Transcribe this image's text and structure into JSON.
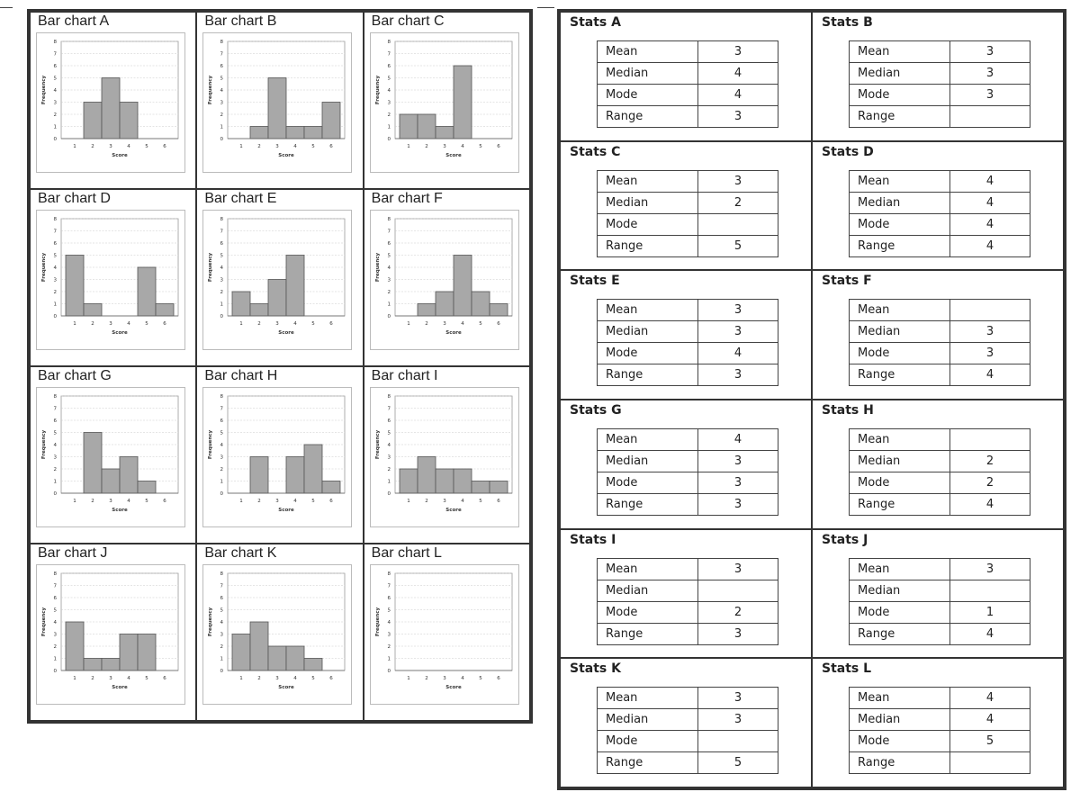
{
  "page": {
    "bg": "#ffffff",
    "bar_color": "#a8a8a8",
    "border_color": "#333333"
  },
  "chart_common": {
    "xlabel": "Score",
    "ylabel": "Frequency",
    "yticks": [
      0,
      1,
      2,
      3,
      4,
      5,
      6,
      7,
      8
    ],
    "xticks": [
      1,
      2,
      3,
      4,
      5,
      6
    ],
    "ylim": [
      0,
      8
    ]
  },
  "chart_data": [
    {
      "type": "bar",
      "title": "Bar chart A",
      "categories": [
        1,
        2,
        3,
        4,
        5,
        6
      ],
      "values": [
        0,
        3,
        5,
        3,
        0,
        0
      ],
      "xlabel": "Score",
      "ylabel": "Frequency",
      "ylim": [
        0,
        8
      ]
    },
    {
      "type": "bar",
      "title": "Bar chart B",
      "categories": [
        1,
        2,
        3,
        4,
        5,
        6
      ],
      "values": [
        0,
        1,
        5,
        1,
        1,
        3
      ],
      "xlabel": "Score",
      "ylabel": "Frequency",
      "ylim": [
        0,
        8
      ]
    },
    {
      "type": "bar",
      "title": "Bar chart C",
      "categories": [
        1,
        2,
        3,
        4,
        5,
        6
      ],
      "values": [
        2,
        2,
        1,
        6,
        0,
        0
      ],
      "xlabel": "Score",
      "ylabel": "Frequency",
      "ylim": [
        0,
        8
      ]
    },
    {
      "type": "bar",
      "title": "Bar chart D",
      "categories": [
        1,
        2,
        3,
        4,
        5,
        6
      ],
      "values": [
        5,
        1,
        0,
        0,
        4,
        1
      ],
      "xlabel": "Score",
      "ylabel": "Frequency",
      "ylim": [
        0,
        8
      ]
    },
    {
      "type": "bar",
      "title": "Bar chart E",
      "categories": [
        1,
        2,
        3,
        4,
        5,
        6
      ],
      "values": [
        2,
        1,
        3,
        5,
        0,
        0
      ],
      "xlabel": "Score",
      "ylabel": "Frequency",
      "ylim": [
        0,
        8
      ]
    },
    {
      "type": "bar",
      "title": "Bar chart F",
      "categories": [
        1,
        2,
        3,
        4,
        5,
        6
      ],
      "values": [
        0,
        1,
        2,
        5,
        2,
        1
      ],
      "xlabel": "Score",
      "ylabel": "Frequency",
      "ylim": [
        0,
        8
      ]
    },
    {
      "type": "bar",
      "title": "Bar chart G",
      "categories": [
        1,
        2,
        3,
        4,
        5,
        6
      ],
      "values": [
        0,
        5,
        2,
        3,
        1,
        0
      ],
      "xlabel": "Score",
      "ylabel": "Frequency",
      "ylim": [
        0,
        8
      ]
    },
    {
      "type": "bar",
      "title": "Bar chart H",
      "categories": [
        1,
        2,
        3,
        4,
        5,
        6
      ],
      "values": [
        0,
        3,
        0,
        3,
        4,
        1
      ],
      "xlabel": "Score",
      "ylabel": "Frequency",
      "ylim": [
        0,
        8
      ]
    },
    {
      "type": "bar",
      "title": "Bar chart I",
      "categories": [
        1,
        2,
        3,
        4,
        5,
        6
      ],
      "values": [
        2,
        3,
        2,
        2,
        1,
        1
      ],
      "xlabel": "Score",
      "ylabel": "Frequency",
      "ylim": [
        0,
        8
      ]
    },
    {
      "type": "bar",
      "title": "Bar chart J",
      "categories": [
        1,
        2,
        3,
        4,
        5,
        6
      ],
      "values": [
        4,
        1,
        1,
        3,
        3,
        0
      ],
      "xlabel": "Score",
      "ylabel": "Frequency",
      "ylim": [
        0,
        8
      ]
    },
    {
      "type": "bar",
      "title": "Bar chart K",
      "categories": [
        1,
        2,
        3,
        4,
        5,
        6
      ],
      "values": [
        3,
        4,
        2,
        2,
        1,
        0
      ],
      "xlabel": "Score",
      "ylabel": "Frequency",
      "ylim": [
        0,
        8
      ]
    },
    {
      "type": "bar",
      "title": "Bar chart L",
      "categories": [
        1,
        2,
        3,
        4,
        5,
        6
      ],
      "values": [
        0,
        0,
        0,
        0,
        0,
        0
      ],
      "xlabel": "Score",
      "ylabel": "Frequency",
      "ylim": [
        0,
        8
      ]
    }
  ],
  "stats": [
    {
      "title": "Stats A",
      "rows": [
        {
          "label": "Mean",
          "value": "3"
        },
        {
          "label": "Median",
          "value": "4"
        },
        {
          "label": "Mode",
          "value": "4"
        },
        {
          "label": "Range",
          "value": "3"
        }
      ]
    },
    {
      "title": "Stats B",
      "rows": [
        {
          "label": "Mean",
          "value": "3"
        },
        {
          "label": "Median",
          "value": "3"
        },
        {
          "label": "Mode",
          "value": "3"
        },
        {
          "label": "Range",
          "value": ""
        }
      ]
    },
    {
      "title": "Stats C",
      "rows": [
        {
          "label": "Mean",
          "value": "3"
        },
        {
          "label": "Median",
          "value": "2"
        },
        {
          "label": "Mode",
          "value": ""
        },
        {
          "label": "Range",
          "value": "5"
        }
      ]
    },
    {
      "title": "Stats D",
      "rows": [
        {
          "label": "Mean",
          "value": "4"
        },
        {
          "label": "Median",
          "value": "4"
        },
        {
          "label": "Mode",
          "value": "4"
        },
        {
          "label": "Range",
          "value": "4"
        }
      ]
    },
    {
      "title": "Stats E",
      "rows": [
        {
          "label": "Mean",
          "value": "3"
        },
        {
          "label": "Median",
          "value": "3"
        },
        {
          "label": "Mode",
          "value": "4"
        },
        {
          "label": "Range",
          "value": "3"
        }
      ]
    },
    {
      "title": "Stats F",
      "rows": [
        {
          "label": "Mean",
          "value": ""
        },
        {
          "label": "Median",
          "value": "3"
        },
        {
          "label": "Mode",
          "value": "3"
        },
        {
          "label": "Range",
          "value": "4"
        }
      ]
    },
    {
      "title": "Stats G",
      "rows": [
        {
          "label": "Mean",
          "value": "4"
        },
        {
          "label": "Median",
          "value": "3"
        },
        {
          "label": "Mode",
          "value": "3"
        },
        {
          "label": "Range",
          "value": "3"
        }
      ]
    },
    {
      "title": "Stats H",
      "rows": [
        {
          "label": "Mean",
          "value": ""
        },
        {
          "label": "Median",
          "value": "2"
        },
        {
          "label": "Mode",
          "value": "2"
        },
        {
          "label": "Range",
          "value": "4"
        }
      ]
    },
    {
      "title": "Stats I",
      "rows": [
        {
          "label": "Mean",
          "value": "3"
        },
        {
          "label": "Median",
          "value": ""
        },
        {
          "label": "Mode",
          "value": "2"
        },
        {
          "label": "Range",
          "value": "3"
        }
      ]
    },
    {
      "title": "Stats J",
      "rows": [
        {
          "label": "Mean",
          "value": "3"
        },
        {
          "label": "Median",
          "value": ""
        },
        {
          "label": "Mode",
          "value": "1"
        },
        {
          "label": "Range",
          "value": "4"
        }
      ]
    },
    {
      "title": "Stats K",
      "rows": [
        {
          "label": "Mean",
          "value": "3"
        },
        {
          "label": "Median",
          "value": "3"
        },
        {
          "label": "Mode",
          "value": ""
        },
        {
          "label": "Range",
          "value": "5"
        }
      ]
    },
    {
      "title": "Stats L",
      "rows": [
        {
          "label": "Mean",
          "value": "4"
        },
        {
          "label": "Median",
          "value": "4"
        },
        {
          "label": "Mode",
          "value": "5"
        },
        {
          "label": "Range",
          "value": ""
        }
      ]
    }
  ]
}
